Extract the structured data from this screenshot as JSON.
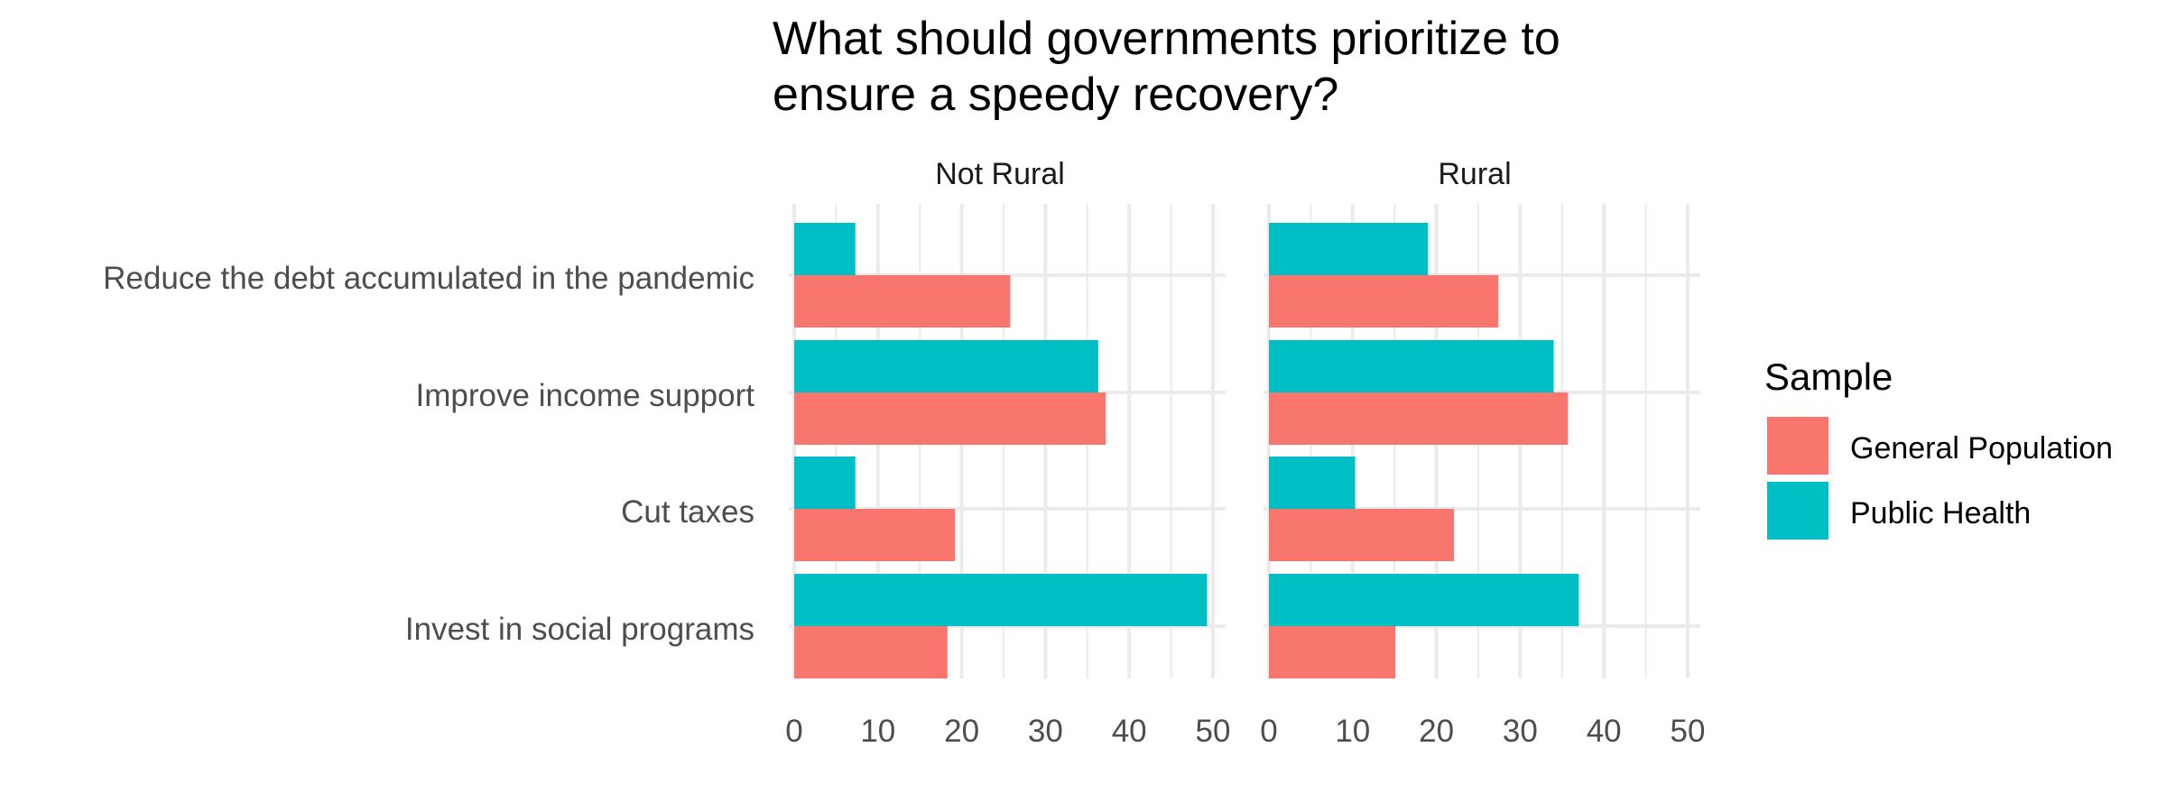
{
  "chart_data": {
    "type": "bar",
    "orientation": "horizontal",
    "title": "What should governments prioritize to ensure a speedy recovery?",
    "title_lines": [
      "What should governments prioritize to",
      "ensure a speedy recovery?"
    ],
    "categories": [
      "Reduce the debt accumulated in the pandemic",
      "Improve income support",
      "Cut taxes",
      "Invest in social programs"
    ],
    "facets": [
      {
        "label": "Not Rural",
        "series": [
          {
            "name": "Public Health",
            "values": [
              7.3,
              36.3,
              7.3,
              49.3
            ]
          },
          {
            "name": "General Population",
            "values": [
              25.8,
              37.2,
              19.2,
              18.3
            ]
          }
        ]
      },
      {
        "label": "Rural",
        "series": [
          {
            "name": "Public Health",
            "values": [
              19,
              34,
              10.3,
              37
            ]
          },
          {
            "name": "General Population",
            "values": [
              27.4,
              35.7,
              22.1,
              15.1
            ]
          }
        ]
      }
    ],
    "xlim": [
      0,
      52
    ],
    "x_ticks": [
      "0",
      "10",
      "20",
      "30",
      "40",
      "50"
    ],
    "legend": {
      "title": "Sample",
      "entries": [
        "General Population",
        "Public Health"
      ],
      "position": "right"
    },
    "colors": {
      "General Population": "#F8766D",
      "Public Health": "#00BFC4",
      "grid": "#ebebeb"
    },
    "grid": true
  }
}
